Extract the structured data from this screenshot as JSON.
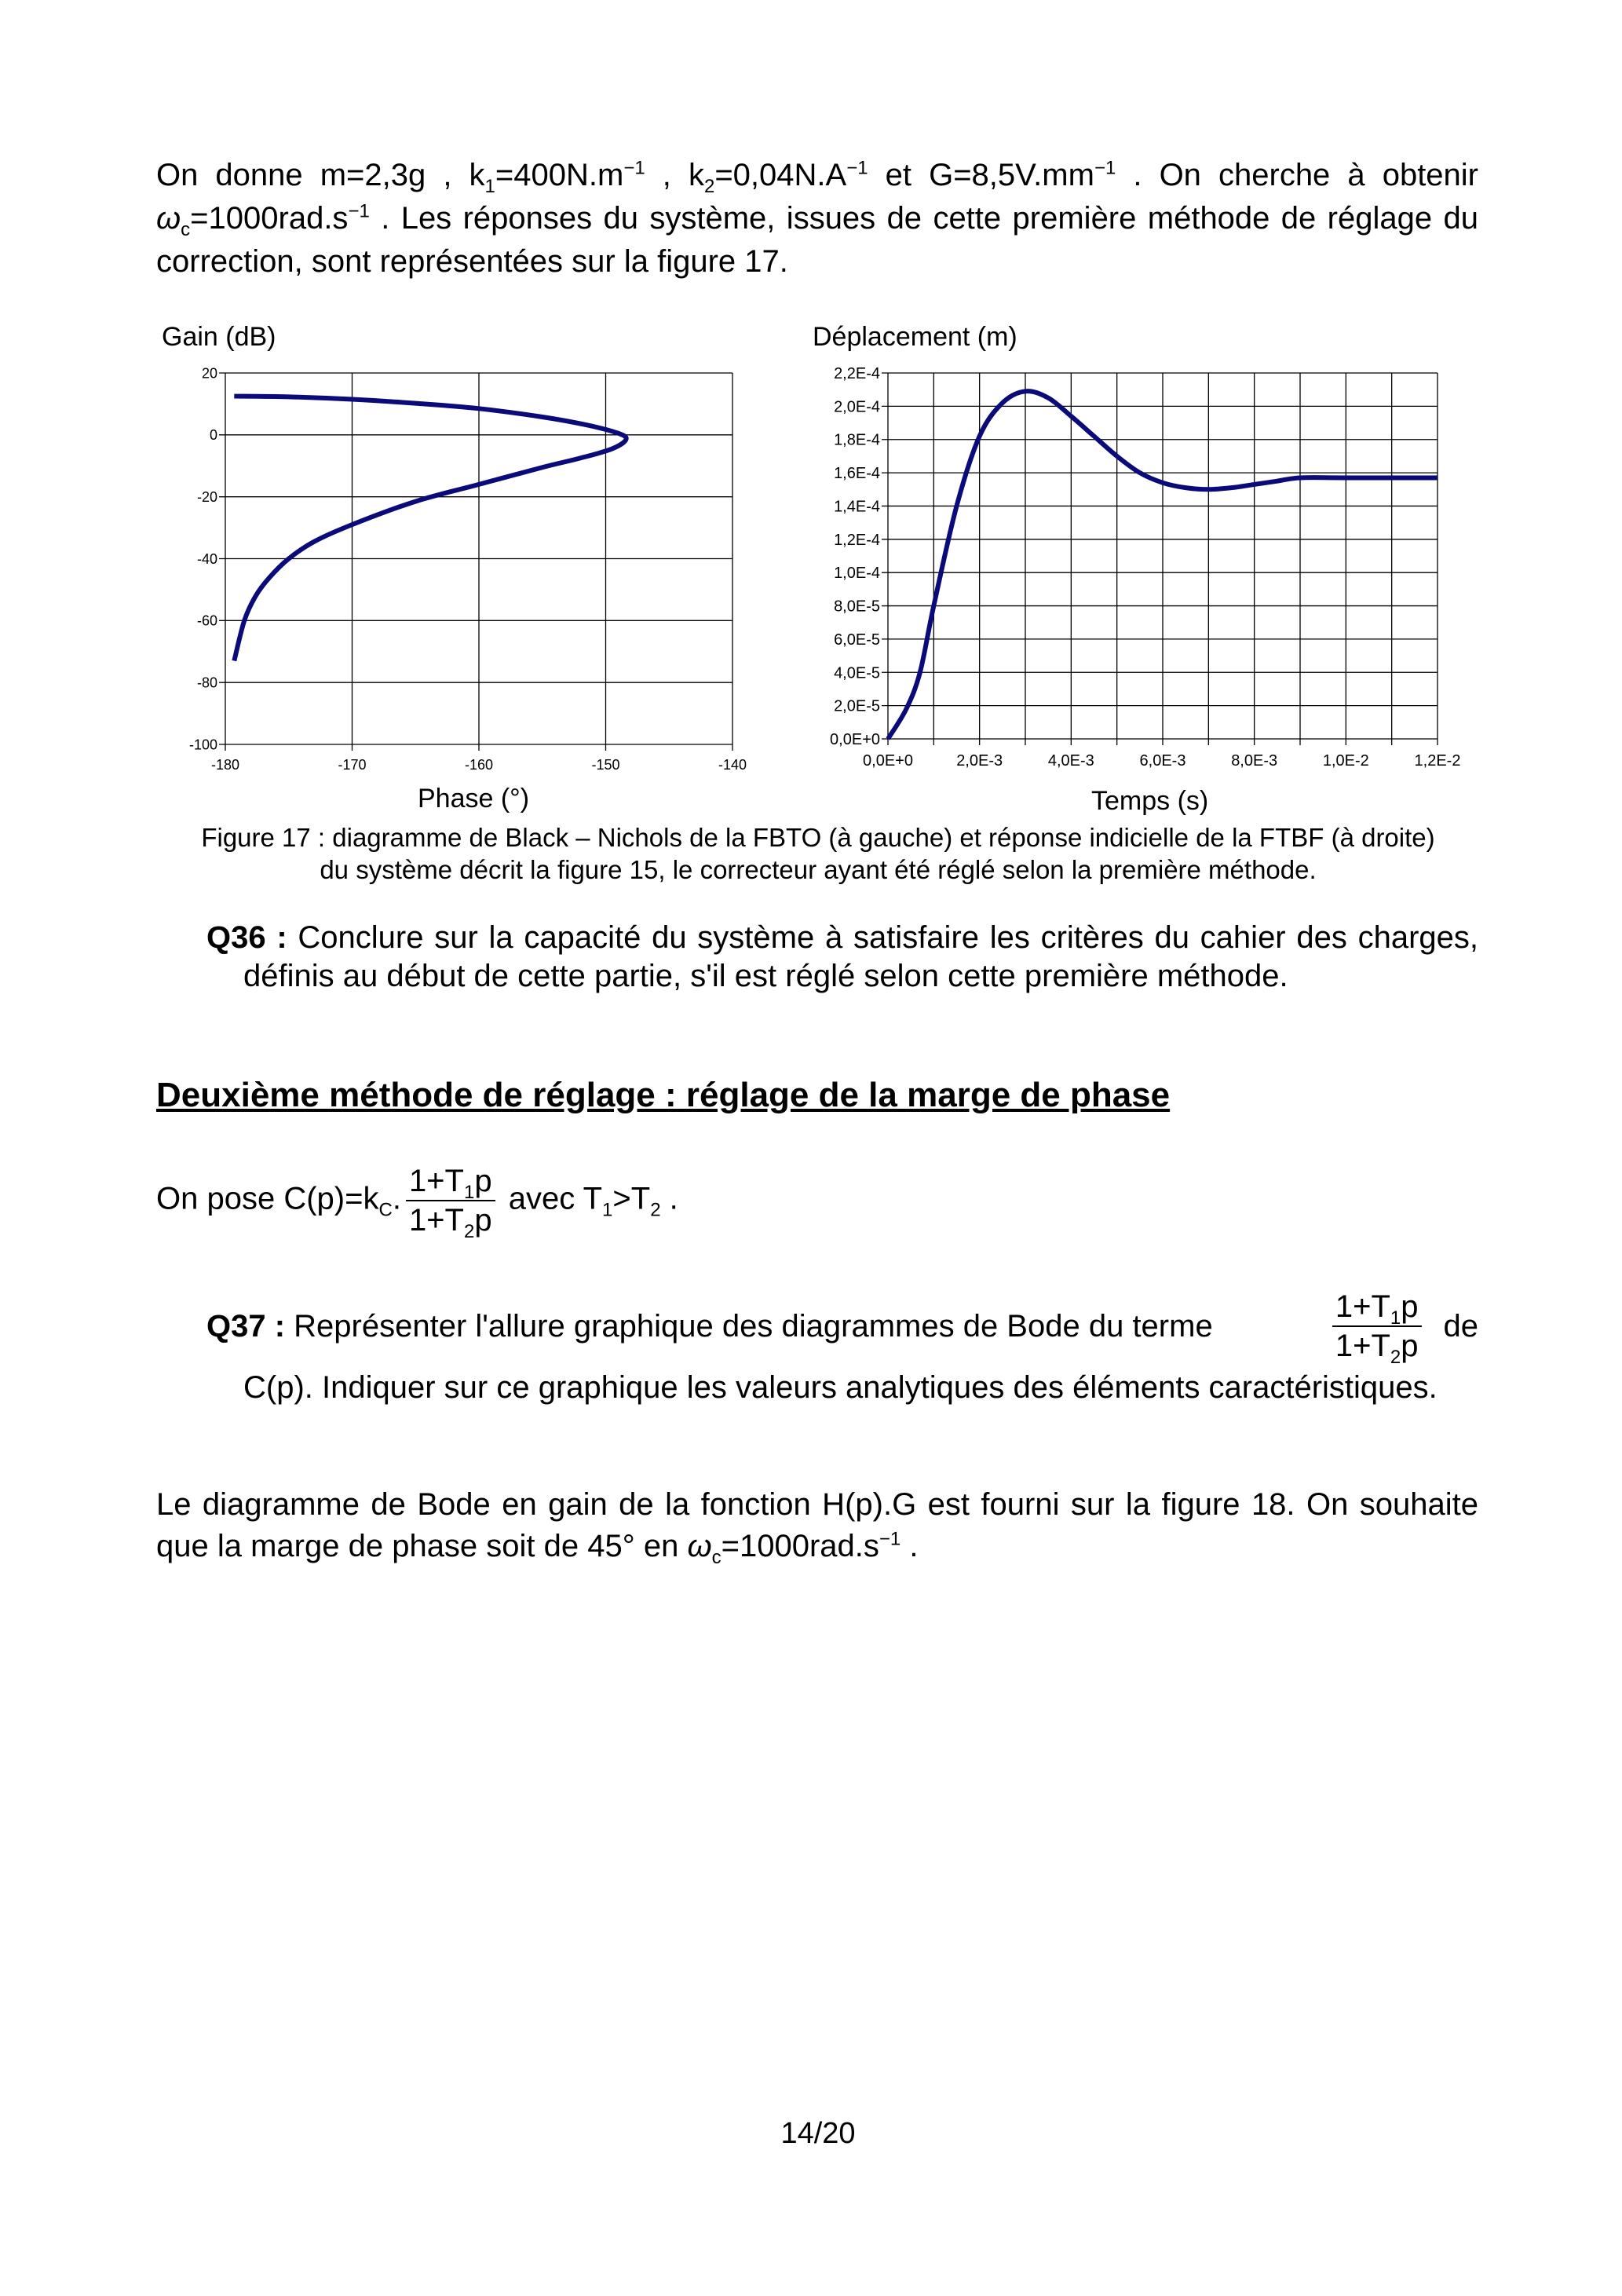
{
  "intro": [
    {
      "text": "On donne  m=2,3g ,  k",
      "style": "normal"
    },
    {
      "text": "1",
      "style": "sub"
    },
    {
      "text": "=400N.m",
      "style": "normal"
    },
    {
      "text": "−1",
      "style": "sup"
    },
    {
      "text": " ,  k",
      "style": "normal"
    },
    {
      "text": "2",
      "style": "sub"
    },
    {
      "text": "=0,04N.A",
      "style": "normal"
    },
    {
      "text": "−1",
      "style": "sup"
    },
    {
      "text": "  et  G=8,5V.mm",
      "style": "normal"
    },
    {
      "text": "−1",
      "style": "sup"
    },
    {
      "text": " . On cherche à obtenir  ",
      "style": "normal"
    },
    {
      "text": "ω",
      "style": "italic"
    },
    {
      "text": "c",
      "style": "sub"
    },
    {
      "text": "=1000rad.s",
      "style": "normal"
    },
    {
      "text": "−1",
      "style": "sup"
    },
    {
      "text": " . Les réponses du système, issues de cette première méthode de réglage du correction, sont représentées sur la figure 17.",
      "style": "normal"
    }
  ],
  "chart_data": [
    {
      "type": "line",
      "title": "",
      "ylabel": "Gain (dB)",
      "xlabel": "Phase (°)",
      "xlim": [
        -180,
        -140
      ],
      "ylim": [
        -100,
        20
      ],
      "xticks": [
        "-180",
        "-170",
        "-160",
        "-150",
        "-140"
      ],
      "yticks": [
        "-100",
        "-80",
        "-60",
        "-40",
        "-20",
        "0",
        "20"
      ],
      "grid": true,
      "color": "#0a0a7a",
      "points": [
        [
          -179.3,
          12.5
        ],
        [
          -175,
          12.3
        ],
        [
          -170,
          11.5
        ],
        [
          -165,
          10.2
        ],
        [
          -160,
          8.5
        ],
        [
          -155,
          5.8
        ],
        [
          -151.5,
          3.2
        ],
        [
          -149,
          0.5
        ],
        [
          -148.4,
          -1.5
        ],
        [
          -149.5,
          -4.5
        ],
        [
          -152,
          -7.5
        ],
        [
          -155,
          -10.5
        ],
        [
          -160,
          -16
        ],
        [
          -165,
          -21.5
        ],
        [
          -170,
          -29
        ],
        [
          -173,
          -34.5
        ],
        [
          -175,
          -40
        ],
        [
          -176.5,
          -46
        ],
        [
          -177.6,
          -52
        ],
        [
          -178.5,
          -60
        ],
        [
          -179.3,
          -73
        ]
      ]
    },
    {
      "type": "line",
      "title": "",
      "ylabel": "Déplacement (m)",
      "xlabel": "Temps (s)",
      "xlim": [
        0,
        0.012
      ],
      "ylim": [
        0,
        0.00022
      ],
      "xticks": [
        "0,0E+0",
        "2,0E-3",
        "4,0E-3",
        "6,0E-3",
        "8,0E-3",
        "1,0E-2",
        "1,2E-2"
      ],
      "yticks": [
        "0,0E+0",
        "2,0E-5",
        "4,0E-5",
        "6,0E-5",
        "8,0E-5",
        "1,0E-4",
        "1,2E-4",
        "1,4E-4",
        "1,6E-4",
        "1,8E-4",
        "2,0E-4",
        "2,2E-4"
      ],
      "grid": true,
      "color": "#0a0a7a",
      "points": [
        [
          0,
          0
        ],
        [
          0.0004,
          1.8e-05
        ],
        [
          0.0007,
          4e-05
        ],
        [
          0.001,
          8e-05
        ],
        [
          0.0015,
          0.00014
        ],
        [
          0.002,
          0.000182
        ],
        [
          0.0025,
          0.000202
        ],
        [
          0.003,
          0.000209
        ],
        [
          0.0035,
          0.000205
        ],
        [
          0.004,
          0.000194
        ],
        [
          0.0045,
          0.000182
        ],
        [
          0.005,
          0.00017
        ],
        [
          0.0055,
          0.00016
        ],
        [
          0.006,
          0.000154
        ],
        [
          0.0065,
          0.000151
        ],
        [
          0.007,
          0.00015
        ],
        [
          0.0075,
          0.000151
        ],
        [
          0.008,
          0.000153
        ],
        [
          0.0085,
          0.000155
        ],
        [
          0.009,
          0.000157
        ],
        [
          0.01,
          0.000157
        ],
        [
          0.012,
          0.000157
        ]
      ]
    }
  ],
  "caption_line1": "Figure 17 : diagramme de Black – Nichols de la FBTO (à gauche) et réponse indicielle de la FTBF (à droite)",
  "caption_line2": "du système décrit la figure 15, le correcteur ayant été réglé selon la première méthode.",
  "q36": {
    "label": "Q36 :",
    "text": " Conclure sur la capacité du système à satisfaire les critères du cahier des charges, définis au début de cette partie, s'il est réglé selon cette première méthode."
  },
  "heading": "Deuxième méthode de réglage : réglage de la marge de phase",
  "pose": {
    "prefix": "On pose  C(p)=k",
    "sub": "C",
    "dot": ".",
    "num": "1+T",
    "num_sub": "1",
    "num_end": "p",
    "den": "1+T",
    "den_sub": "2",
    "den_end": "p",
    "avec": " avec  T",
    "t1": "1",
    "gt": ">T",
    "t2": "2",
    "end": " ."
  },
  "q37": {
    "label": "Q37 :",
    "text": " Représenter l'allure graphique des diagrammes de Bode du terme",
    "num": "1+T",
    "num_sub": "1",
    "num_end": "p",
    "den": "1+T",
    "den_sub": "2",
    "den_end": "p",
    "de": "de",
    "rest": "C(p).  Indiquer sur ce graphique les valeurs analytiques des éléments caractéristiques."
  },
  "last": [
    {
      "text": "Le diagramme de Bode en gain de la fonction  H(p).G  est fourni sur la figure 18. On souhaite que la marge de phase soit de 45° en  ",
      "style": "normal"
    },
    {
      "text": "ω",
      "style": "italic"
    },
    {
      "text": "c",
      "style": "sub"
    },
    {
      "text": "=1000rad.s",
      "style": "normal"
    },
    {
      "text": "−1",
      "style": "sup"
    },
    {
      "text": " .",
      "style": "normal"
    }
  ],
  "page_number": "14/20"
}
